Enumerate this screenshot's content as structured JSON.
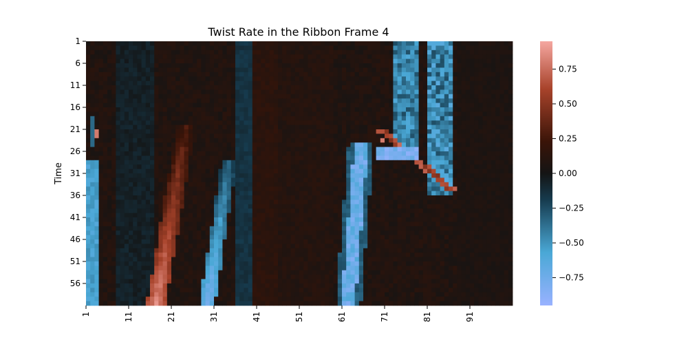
{
  "chart_data": {
    "type": "heatmap",
    "title": "Twist Rate in the Ribbon Frame 4",
    "xlabel": "",
    "ylabel": "Time",
    "x_tick_labels": [
      "1",
      "11",
      "21",
      "31",
      "41",
      "51",
      "61",
      "71",
      "81",
      "91"
    ],
    "y_tick_labels": [
      "1",
      "6",
      "11",
      "16",
      "21",
      "26",
      "31",
      "36",
      "41",
      "46",
      "51",
      "56"
    ],
    "n_columns": 100,
    "n_rows": 60,
    "colorbar": {
      "range": [
        -0.95,
        0.95
      ],
      "ticks": [
        "0.75",
        "0.50",
        "0.25",
        "0.00",
        "−0.25",
        "−0.50",
        "−0.75"
      ],
      "tick_values": [
        0.75,
        0.5,
        0.25,
        0.0,
        -0.25,
        -0.5,
        -0.75
      ],
      "colors": [
        "#99b2ff",
        "#4aa8d6",
        "#163b4e",
        "#141414",
        "#3a1408",
        "#a8432b",
        "#f5a7a0"
      ],
      "color_positions": [
        0.0,
        0.2,
        0.4,
        0.5,
        0.62,
        0.82,
        1.0
      ]
    },
    "features": [
      {
        "name": "left-edge-negative",
        "x": [
          1,
          3
        ],
        "t": [
          28,
          60
        ],
        "value": -0.55
      },
      {
        "name": "left-edge-positive-dot",
        "x": [
          3,
          3
        ],
        "t": [
          21,
          22
        ],
        "value": 0.8
      },
      {
        "name": "diagonal-positive-band",
        "x_start": 24,
        "x_end": 17,
        "t": [
          20,
          60
        ],
        "value": 0.5,
        "peak": 0.9
      },
      {
        "name": "diagonal-negative-band",
        "x_start": 34,
        "x_end": 29,
        "t": [
          28,
          60
        ],
        "value": -0.55,
        "peak": -0.8
      },
      {
        "name": "negative-streak-62",
        "x": [
          61,
          65
        ],
        "t": [
          24,
          60
        ],
        "value": -0.55,
        "peak": -0.85
      },
      {
        "name": "negative-column-cluster-75",
        "x": [
          73,
          78
        ],
        "t": [
          1,
          26
        ],
        "value": -0.4
      },
      {
        "name": "negative-column-cluster-83",
        "x": [
          81,
          86
        ],
        "t": [
          1,
          35
        ],
        "value": -0.45
      },
      {
        "name": "positive-diagonal-70-86",
        "x": [
          69,
          86
        ],
        "t": [
          21,
          34
        ],
        "value": 0.5
      },
      {
        "name": "background-positive-stripe-42",
        "x": [
          40,
          45
        ],
        "t": [
          1,
          60
        ],
        "value": 0.12
      },
      {
        "name": "background-negative-stripe-38",
        "x": [
          36,
          39
        ],
        "t": [
          1,
          60
        ],
        "value": -0.15
      }
    ]
  }
}
